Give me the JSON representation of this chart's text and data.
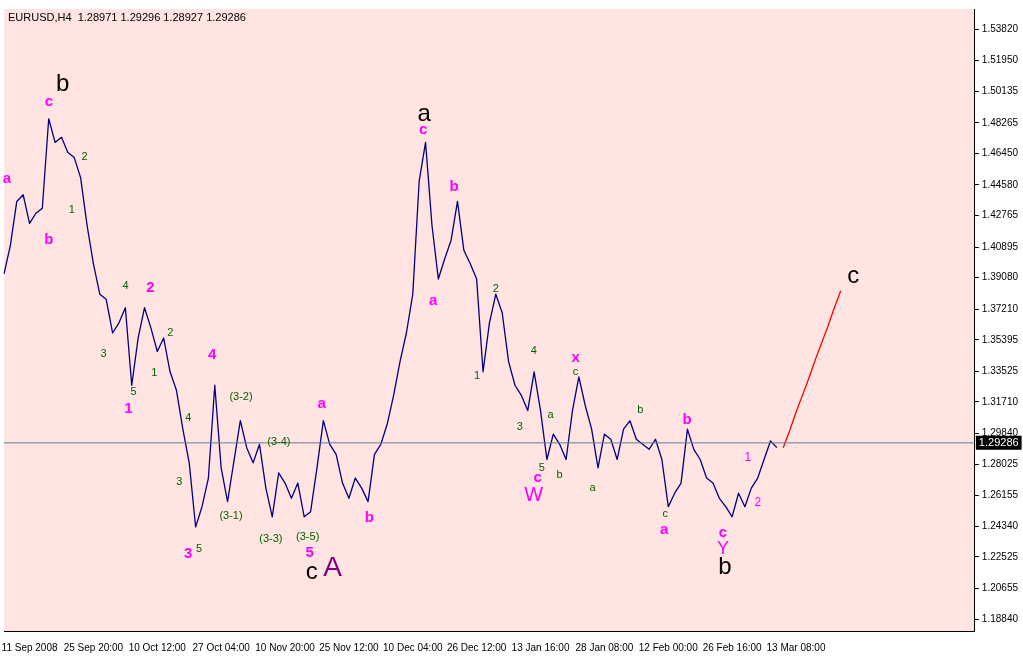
{
  "chart_data": {
    "type": "line",
    "title": "EURUSD,H4  1.28971 1.29296 1.28927 1.29286",
    "categories": [
      null,
      null,
      null,
      null,
      "11 Sep 2008",
      null,
      null,
      null,
      null,
      null,
      null,
      null,
      null,
      null,
      "25 Sep 20:00",
      null,
      null,
      null,
      null,
      null,
      null,
      null,
      null,
      null,
      "10 Oct 12:00",
      null,
      null,
      null,
      null,
      null,
      null,
      null,
      null,
      null,
      "27 Oct 04:00",
      null,
      null,
      null,
      null,
      null,
      null,
      null,
      null,
      null,
      "10 Nov 20:00",
      null,
      null,
      null,
      null,
      null,
      null,
      null,
      null,
      null,
      "25 Nov 12:00",
      null,
      null,
      null,
      null,
      null,
      null,
      null,
      null,
      null,
      "10 Dec 04:00",
      null,
      null,
      null,
      null,
      null,
      null,
      null,
      null,
      null,
      "26 Dec 12:00",
      null,
      null,
      null,
      null,
      null,
      null,
      null,
      null,
      null,
      "13 Jan 16:00",
      null,
      null,
      null,
      null,
      null,
      null,
      null,
      null,
      null,
      "28 Jan 08:00",
      null,
      null,
      null,
      null,
      null,
      null,
      null,
      null,
      null,
      "12 Feb 00:00",
      null,
      null,
      null,
      null,
      null,
      null,
      null,
      null,
      null,
      "26 Feb 16:00",
      null,
      null,
      null,
      null,
      null,
      null,
      null,
      null,
      null,
      "13 Mar 08:00",
      null,
      null,
      null,
      null,
      null,
      null,
      null,
      null,
      null,
      null,
      null,
      null,
      null,
      null,
      null,
      null,
      null,
      null,
      null,
      null,
      null,
      null,
      null,
      null,
      null,
      null,
      null,
      null
    ],
    "ylim": [
      1.1813,
      1.5501
    ],
    "yticks": [
      {
        "value": 1.1884,
        "label": "1.18840"
      },
      {
        "value": 1.20655,
        "label": "1.20655"
      },
      {
        "value": 1.22525,
        "label": "1.22525"
      },
      {
        "value": 1.2434,
        "label": "1.24340"
      },
      {
        "value": 1.26155,
        "label": "1.26155"
      },
      {
        "value": 1.28025,
        "label": "1.28025"
      },
      {
        "value": 1.2984,
        "label": "1.29840"
      },
      {
        "value": 1.3171,
        "label": "1.31710"
      },
      {
        "value": 1.33525,
        "label": "1.33525"
      },
      {
        "value": 1.35395,
        "label": "1.35395"
      },
      {
        "value": 1.3721,
        "label": "1.37210"
      },
      {
        "value": 1.3908,
        "label": "1.39080"
      },
      {
        "value": 1.40895,
        "label": "1.40895"
      },
      {
        "value": 1.42765,
        "label": "1.42765"
      },
      {
        "value": 1.4458,
        "label": "1.44580"
      },
      {
        "value": 1.4645,
        "label": "1.46450"
      },
      {
        "value": 1.48265,
        "label": "1.48265"
      },
      {
        "value": 1.50135,
        "label": "1.50135"
      },
      {
        "value": 1.5195,
        "label": "1.51950"
      },
      {
        "value": 1.5382,
        "label": "1.53820"
      }
    ],
    "grid": false,
    "legend": false,
    "marker": "none",
    "line_style": "solid",
    "series": [
      {
        "color": "#000080",
        "values": [
          1.393,
          1.41,
          1.436,
          1.44,
          1.423,
          1.429,
          1.432,
          1.485,
          1.471,
          1.474,
          1.465,
          1.462,
          1.45,
          1.422,
          1.399,
          1.381,
          1.378,
          1.358,
          1.364,
          1.373,
          1.327,
          1.355,
          1.373,
          1.361,
          1.347,
          1.355,
          1.335,
          1.324,
          1.301,
          1.281,
          1.243,
          1.255,
          1.272,
          1.327,
          1.278,
          1.258,
          1.282,
          1.306,
          1.29,
          1.281,
          1.292,
          1.266,
          1.249,
          1.275,
          1.269,
          1.26,
          1.269,
          1.249,
          1.252,
          1.278,
          1.306,
          1.292,
          1.286,
          1.269,
          1.26,
          1.272,
          1.266,
          1.258,
          1.286,
          1.292,
          1.304,
          1.321,
          1.341,
          1.358,
          1.381,
          1.448,
          1.471,
          1.422,
          1.39,
          1.402,
          1.413,
          1.436,
          1.407,
          1.399,
          1.39,
          1.335,
          1.364,
          1.381,
          1.37,
          1.341,
          1.327,
          1.321,
          1.312,
          1.335,
          1.312,
          1.283,
          1.298,
          1.292,
          1.283,
          1.312,
          1.332,
          1.315,
          1.301,
          1.278,
          1.298,
          1.295,
          1.283,
          1.301,
          1.306,
          1.295,
          1.292,
          1.289,
          1.295,
          1.283,
          1.255,
          1.263,
          1.269,
          1.301,
          1.289,
          1.283,
          1.272,
          1.269,
          1.26,
          1.255,
          1.249,
          1.263,
          1.255,
          1.266,
          1.272,
          1.283,
          1.294,
          1.29,
          null,
          null,
          null,
          null,
          null,
          null,
          null,
          null,
          null,
          null,
          null,
          null,
          null,
          null,
          null,
          null,
          null,
          null,
          null,
          null,
          null,
          null,
          null,
          null,
          null,
          null,
          null,
          null,
          null,
          null,
          null
        ]
      },
      {
        "color": "#ff0000",
        "values": [
          null,
          null,
          null,
          null,
          null,
          null,
          null,
          null,
          null,
          null,
          null,
          null,
          null,
          null,
          null,
          null,
          null,
          null,
          null,
          null,
          null,
          null,
          null,
          null,
          null,
          null,
          null,
          null,
          null,
          null,
          null,
          null,
          null,
          null,
          null,
          null,
          null,
          null,
          null,
          null,
          null,
          null,
          null,
          null,
          null,
          null,
          null,
          null,
          null,
          null,
          null,
          null,
          null,
          null,
          null,
          null,
          null,
          null,
          null,
          null,
          null,
          null,
          null,
          null,
          null,
          null,
          null,
          null,
          null,
          null,
          null,
          null,
          null,
          null,
          null,
          null,
          null,
          null,
          null,
          null,
          null,
          null,
          null,
          null,
          null,
          null,
          null,
          null,
          null,
          null,
          null,
          null,
          null,
          null,
          null,
          null,
          null,
          null,
          null,
          null,
          null,
          null,
          null,
          null,
          null,
          null,
          null,
          null,
          null,
          null,
          null,
          null,
          null,
          null,
          null,
          null,
          null,
          null,
          null,
          null,
          null,
          null,
          1.29,
          1.3,
          1.311,
          1.321,
          1.331,
          1.342,
          1.352,
          1.362,
          1.373,
          1.383,
          null,
          null,
          null,
          null,
          null,
          null,
          null,
          null,
          null,
          null,
          null,
          null,
          null,
          null,
          null,
          null,
          null,
          null,
          null,
          null,
          null
        ]
      }
    ],
    "ref_lines": [
      {
        "axis": "y",
        "value": 1.29286,
        "label": "1.29286",
        "color": "#6d7b8d"
      }
    ],
    "annotations": [
      "a",
      "b",
      "c",
      "b",
      "2",
      "1",
      "4",
      "2",
      "3",
      "5",
      "1",
      "1",
      "2",
      "4",
      "4",
      "3",
      "3",
      "5",
      "(3-2)",
      "(3-1)",
      "(3-4)",
      "(3-3)",
      "(3-5)",
      "5",
      "c",
      "A",
      "a",
      "b",
      "a",
      "c",
      "a",
      "b",
      "2",
      "1",
      "4",
      "3",
      "5",
      "c",
      "W",
      "b",
      "a",
      "x",
      "c",
      "a",
      "b",
      "b",
      "c",
      "a",
      "c",
      "Y",
      "b",
      "1",
      "2",
      "c"
    ]
  }
}
